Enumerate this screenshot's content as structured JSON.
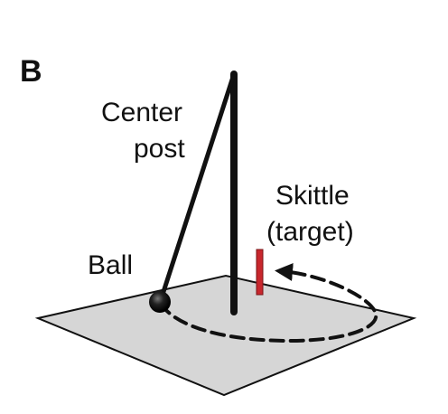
{
  "panel_label": "B",
  "labels": {
    "center_post_line1": "Center",
    "center_post_line2": "post",
    "skittle_line1": "Skittle",
    "skittle_line2": "(target)",
    "ball": "Ball"
  },
  "colors": {
    "floor_fill": "#d6d6d6",
    "ink": "#111111",
    "skittle": "#c8272d"
  }
}
